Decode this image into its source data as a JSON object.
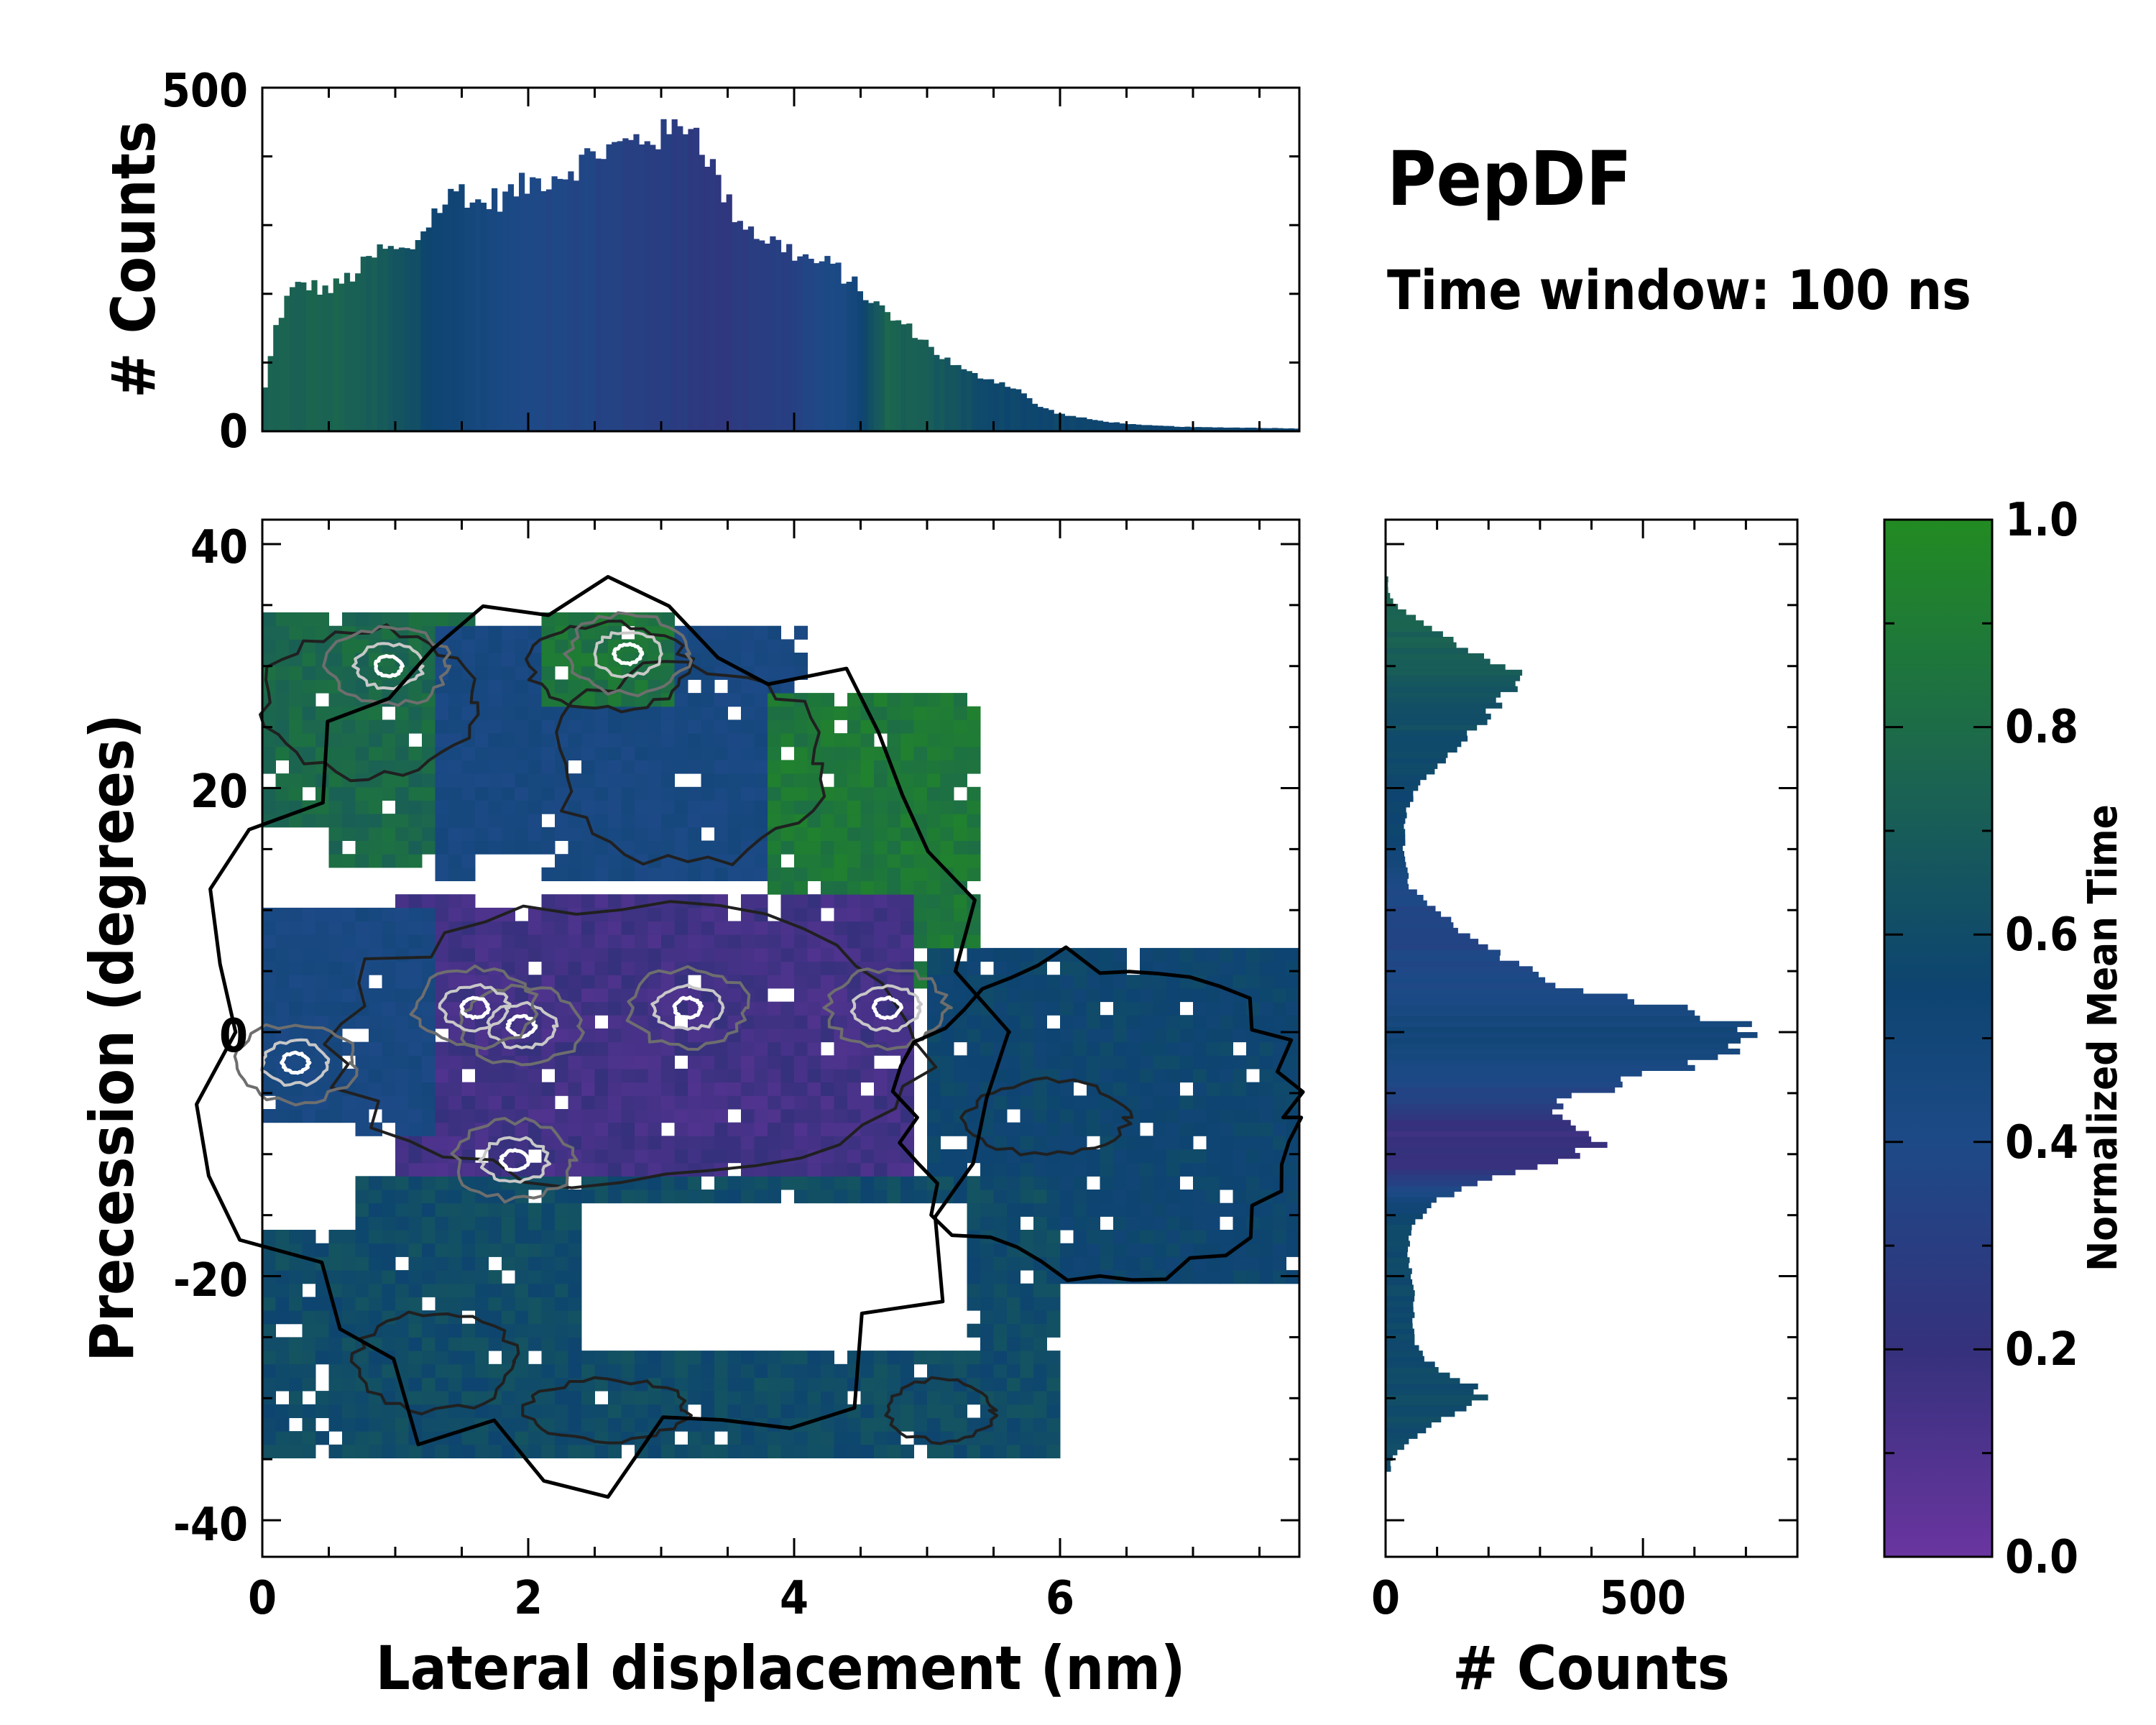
{
  "figure": {
    "title": "PepDF",
    "subtitle": "Time window: 100 ns"
  },
  "colors": {
    "cmap": [
      "#6a35a0",
      "#35317c",
      "#1d4a87",
      "#0d4470",
      "#1b6451",
      "#228b22"
    ],
    "contour_outer": "#000000",
    "contour_inner_dark": "#202020",
    "contour_inner_light": "#c8c8c8"
  },
  "chart_data": [
    {
      "id": "top-histogram",
      "type": "bar",
      "title": "",
      "xlabel": "",
      "ylabel": "# Counts",
      "xlim": [
        0,
        7.8
      ],
      "ylim": [
        0,
        500
      ],
      "yticks": [
        0,
        500
      ],
      "y_minor_step": 100,
      "x_profile": [
        [
          0.0,
          40
        ],
        [
          0.1,
          150
        ],
        [
          0.2,
          200
        ],
        [
          0.3,
          215
        ],
        [
          0.5,
          205
        ],
        [
          0.7,
          230
        ],
        [
          0.9,
          265
        ],
        [
          1.1,
          260
        ],
        [
          1.3,
          320
        ],
        [
          1.5,
          355
        ],
        [
          1.6,
          330
        ],
        [
          1.8,
          340
        ],
        [
          2.0,
          360
        ],
        [
          2.3,
          380
        ],
        [
          2.5,
          405
        ],
        [
          2.7,
          415
        ],
        [
          2.9,
          430
        ],
        [
          3.05,
          430
        ],
        [
          3.2,
          455
        ],
        [
          3.3,
          425
        ],
        [
          3.5,
          330
        ],
        [
          3.7,
          290
        ],
        [
          3.9,
          270
        ],
        [
          4.1,
          250
        ],
        [
          4.3,
          240
        ],
        [
          4.5,
          205
        ],
        [
          4.7,
          170
        ],
        [
          4.9,
          145
        ],
        [
          5.1,
          110
        ],
        [
          5.3,
          85
        ],
        [
          5.5,
          75
        ],
        [
          5.7,
          60
        ],
        [
          5.8,
          40
        ],
        [
          6.0,
          25
        ],
        [
          6.3,
          15
        ],
        [
          6.6,
          9
        ],
        [
          7.0,
          6
        ],
        [
          7.5,
          5
        ],
        [
          7.8,
          4
        ]
      ],
      "color_profile": [
        [
          0.0,
          0.78
        ],
        [
          0.6,
          0.8
        ],
        [
          1.0,
          0.72
        ],
        [
          1.5,
          0.52
        ],
        [
          2.0,
          0.38
        ],
        [
          2.5,
          0.35
        ],
        [
          3.0,
          0.3
        ],
        [
          3.5,
          0.25
        ],
        [
          4.0,
          0.33
        ],
        [
          4.4,
          0.45
        ],
        [
          4.7,
          0.8
        ],
        [
          5.0,
          0.75
        ],
        [
          5.5,
          0.62
        ],
        [
          6.5,
          0.6
        ],
        [
          7.8,
          0.6
        ]
      ]
    },
    {
      "id": "heatmap",
      "type": "heatmap",
      "title": "",
      "xlabel": "Lateral displacement (nm)",
      "ylabel": "Precession (degrees)",
      "xlim": [
        0,
        7.8
      ],
      "ylim": [
        -43,
        42
      ],
      "xticks": [
        0,
        2,
        4,
        6
      ],
      "yticks": [
        -40,
        -20,
        0,
        20,
        40
      ],
      "colorbar_label": "Normalized Mean Time",
      "regions": [
        {
          "name": "top-left-green",
          "x": [
            0.0,
            1.6
          ],
          "y": [
            14,
            34
          ],
          "value": 0.82
        },
        {
          "name": "top-center-blue",
          "x": [
            1.3,
            4.1
          ],
          "y": [
            12,
            33
          ],
          "value": 0.45
        },
        {
          "name": "top-center-green",
          "x": [
            2.1,
            3.1
          ],
          "y": [
            27,
            34
          ],
          "value": 0.88
        },
        {
          "name": "upper-right-green",
          "x": [
            3.8,
            5.4
          ],
          "y": [
            4,
            28
          ],
          "value": 0.9
        },
        {
          "name": "center-purple",
          "x": [
            1.0,
            4.9
          ],
          "y": [
            -17,
            11
          ],
          "value": 0.15
        },
        {
          "name": "right-teal",
          "x": [
            5.0,
            7.8
          ],
          "y": [
            -21,
            7
          ],
          "value": 0.6
        },
        {
          "name": "bottom-teal",
          "x": [
            0.0,
            6.0
          ],
          "y": [
            -35,
            -12
          ],
          "value": 0.65
        },
        {
          "name": "left-blue",
          "x": [
            0.0,
            1.3
          ],
          "y": [
            -8,
            10
          ],
          "value": 0.45
        }
      ],
      "white_holes": [
        {
          "x": [
            1.6,
            2.1
          ],
          "y": [
            10,
            15
          ]
        },
        {
          "x": [
            2.4,
            5.3
          ],
          "y": [
            -26,
            -14
          ]
        },
        {
          "x": [
            0.0,
            0.7
          ],
          "y": [
            -16,
            -7
          ]
        },
        {
          "x": [
            0.0,
            0.5
          ],
          "y": [
            11,
            17
          ]
        }
      ],
      "hotspots": [
        [
          0.25,
          -2.5
        ],
        [
          0.95,
          30
        ],
        [
          2.75,
          31
        ],
        [
          1.95,
          0.5
        ],
        [
          1.9,
          -10.5
        ],
        [
          3.2,
          2
        ],
        [
          4.7,
          2
        ],
        [
          1.6,
          2
        ]
      ]
    },
    {
      "id": "right-histogram",
      "type": "bar",
      "orientation": "horizontal",
      "xlabel": "# Counts",
      "ylabel": "",
      "xlim": [
        0,
        800
      ],
      "xticks": [
        0,
        500
      ],
      "ylim": [
        -43,
        42
      ],
      "y_profile": [
        [
          -35,
          10
        ],
        [
          -33,
          60
        ],
        [
          -31,
          140
        ],
        [
          -30,
          190
        ],
        [
          -29,
          170
        ],
        [
          -27,
          80
        ],
        [
          -25,
          55
        ],
        [
          -22,
          55
        ],
        [
          -20,
          50
        ],
        [
          -18,
          45
        ],
        [
          -16,
          50
        ],
        [
          -14,
          90
        ],
        [
          -12,
          200
        ],
        [
          -11,
          280
        ],
        [
          -10,
          380
        ],
        [
          -9,
          410
        ],
        [
          -8,
          360
        ],
        [
          -6,
          330
        ],
        [
          -4,
          470
        ],
        [
          -3,
          560
        ],
        [
          -2,
          640
        ],
        [
          -1,
          670
        ],
        [
          0,
          720
        ],
        [
          1,
          650
        ],
        [
          2,
          560
        ],
        [
          3,
          440
        ],
        [
          4,
          320
        ],
        [
          6,
          240
        ],
        [
          8,
          160
        ],
        [
          10,
          100
        ],
        [
          12,
          45
        ],
        [
          15,
          35
        ],
        [
          18,
          40
        ],
        [
          20,
          60
        ],
        [
          22,
          110
        ],
        [
          24,
          150
        ],
        [
          26,
          200
        ],
        [
          28,
          240
        ],
        [
          29,
          270
        ],
        [
          30,
          235
        ],
        [
          31,
          180
        ],
        [
          33,
          90
        ],
        [
          35,
          20
        ],
        [
          36,
          5
        ]
      ],
      "color_profile": [
        [
          -35,
          0.65
        ],
        [
          -15,
          0.62
        ],
        [
          -13,
          0.4
        ],
        [
          -11,
          0.2
        ],
        [
          -8,
          0.18
        ],
        [
          -6,
          0.3
        ],
        [
          -3,
          0.45
        ],
        [
          0,
          0.52
        ],
        [
          4,
          0.4
        ],
        [
          9,
          0.35
        ],
        [
          12,
          0.4
        ],
        [
          16,
          0.6
        ],
        [
          22,
          0.62
        ],
        [
          26,
          0.68
        ],
        [
          30,
          0.75
        ],
        [
          34,
          0.8
        ],
        [
          36,
          0.8
        ]
      ]
    },
    {
      "id": "colorbar",
      "type": "colorbar",
      "label": "Normalized Mean Time",
      "range": [
        0.0,
        1.0
      ],
      "ticks": [
        "0.0",
        "0.2",
        "0.4",
        "0.6",
        "0.8",
        "1.0"
      ]
    }
  ]
}
